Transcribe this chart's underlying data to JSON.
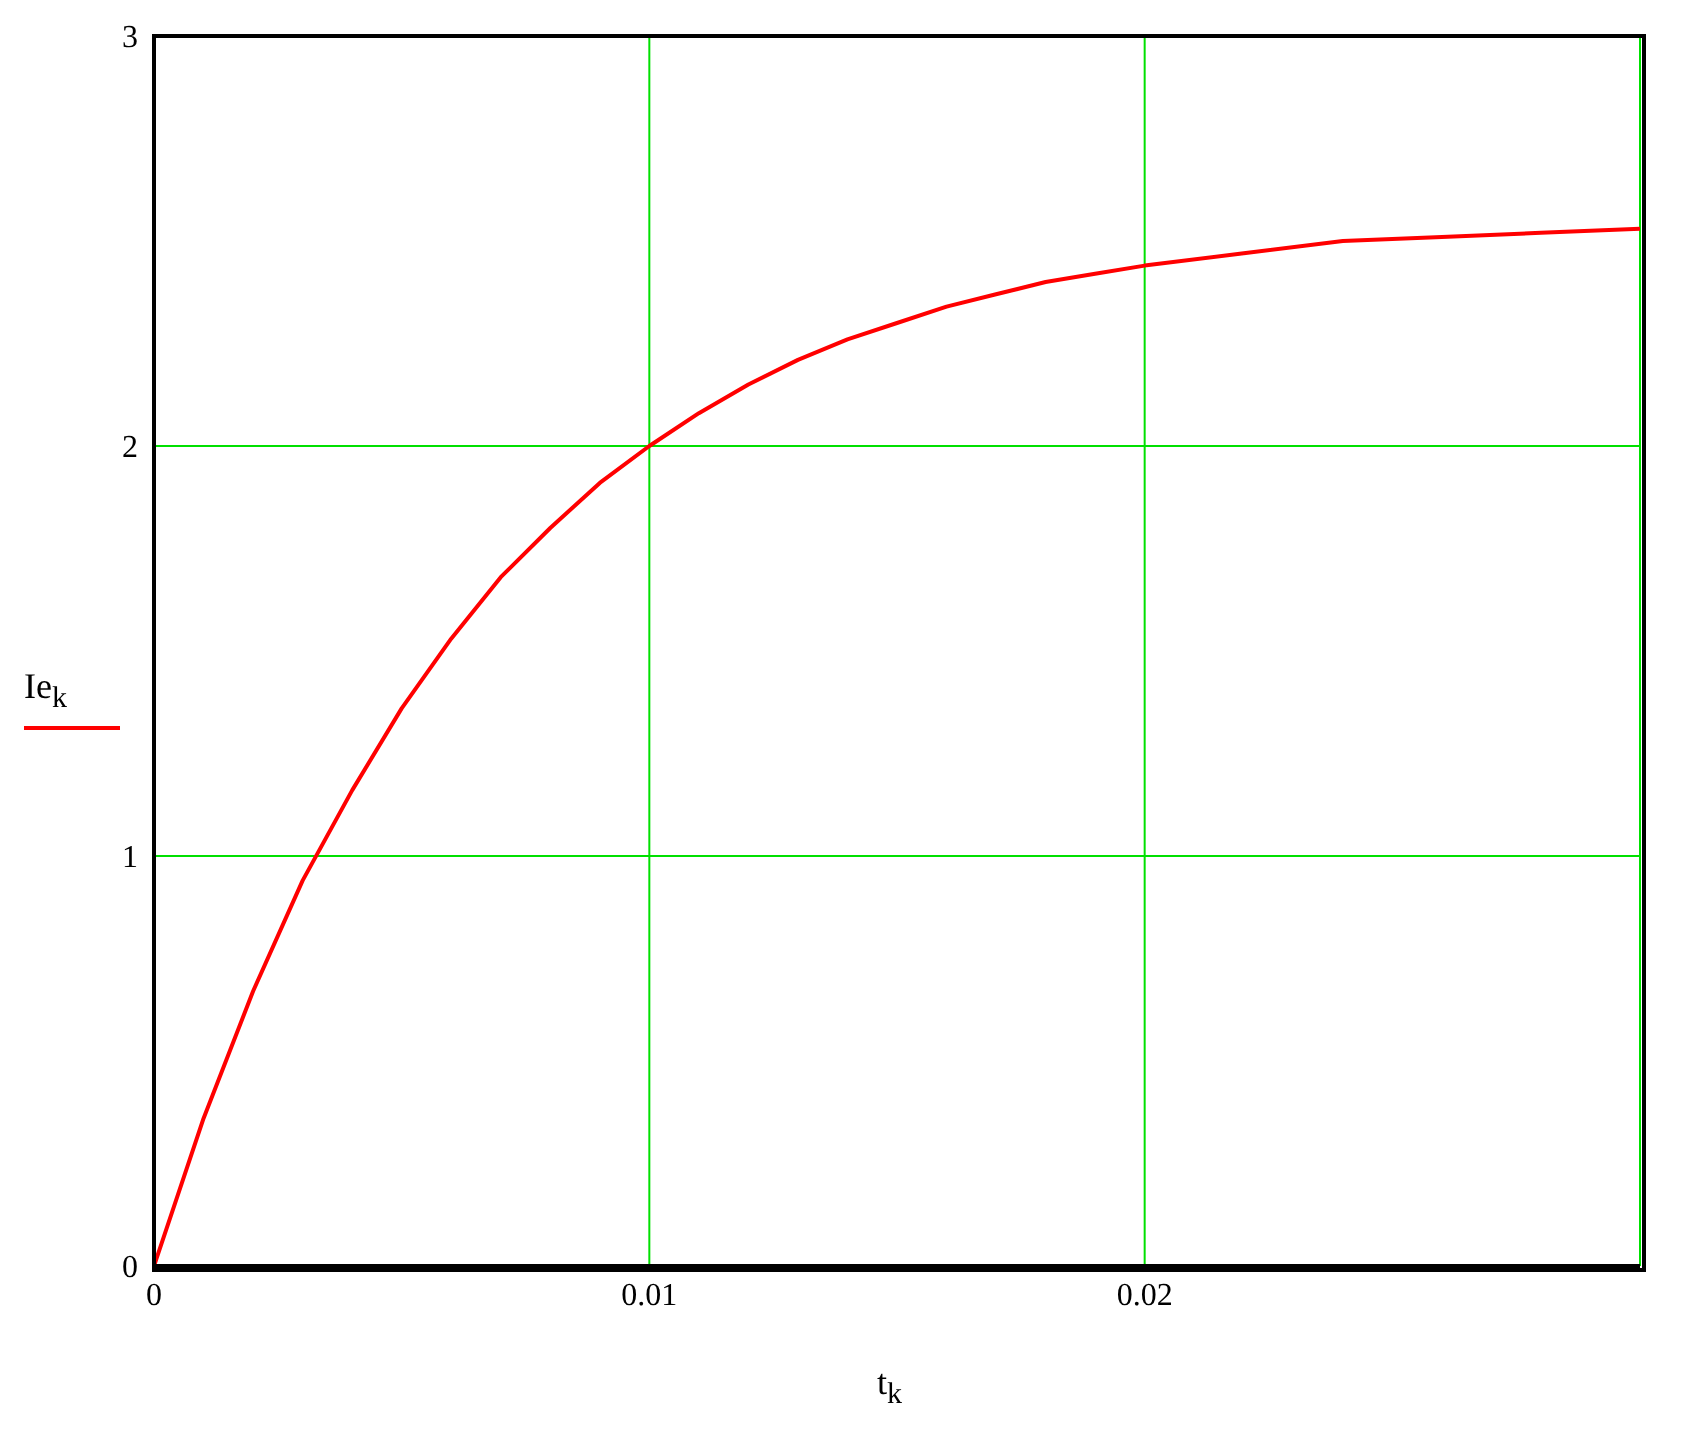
{
  "chart_data": {
    "type": "line",
    "xlabel": "t$_{k}$",
    "ylabel": "Ie$_{k}$",
    "x": [
      0,
      0.001,
      0.002,
      0.003,
      0.004,
      0.005,
      0.006,
      0.007,
      0.008,
      0.009,
      0.01,
      0.011,
      0.012,
      0.013,
      0.014,
      0.015,
      0.016,
      0.017,
      0.018,
      0.019,
      0.02,
      0.022,
      0.024,
      0.026,
      0.028,
      0.03
    ],
    "series": [
      {
        "color": "#ff0000",
        "values": [
          0,
          0.36,
          0.67,
          0.94,
          1.16,
          1.36,
          1.53,
          1.68,
          1.8,
          1.91,
          2.0,
          2.08,
          2.15,
          2.21,
          2.26,
          2.3,
          2.34,
          2.37,
          2.4,
          2.42,
          2.44,
          2.47,
          2.5,
          2.51,
          2.52,
          2.53
        ]
      }
    ],
    "xlim": [
      0,
      0.03
    ],
    "xticks": [
      0,
      0.01,
      0.02
    ],
    "ylim": [
      0,
      3
    ],
    "yticks": [
      0,
      1,
      2,
      3
    ],
    "grid": true,
    "marker": "none",
    "line_style": "solid"
  }
}
